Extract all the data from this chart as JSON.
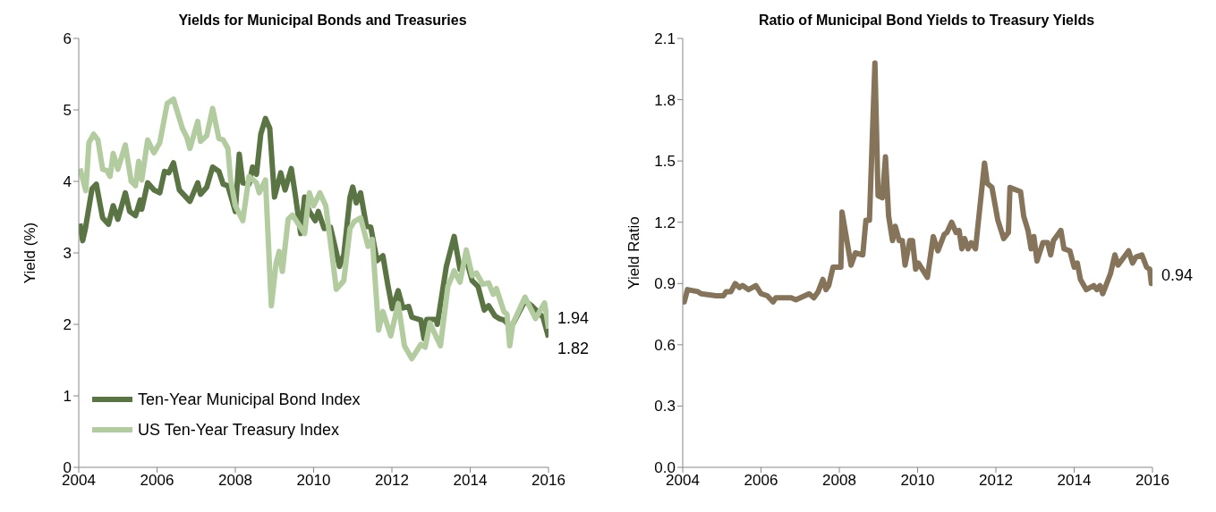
{
  "chart_data": [
    {
      "type": "line",
      "title": "Yields for Municipal Bonds and Treasuries",
      "ylabel": "Yield (%)",
      "xlim": [
        2004,
        2016
      ],
      "xticks": [
        2004,
        2006,
        2008,
        2010,
        2012,
        2014,
        2016
      ],
      "ylim": [
        0,
        6
      ],
      "yticks": [
        0,
        1,
        2,
        3,
        4,
        5,
        6
      ],
      "legend": "bottom left",
      "marker": "none",
      "line_style": "solid",
      "series": [
        {
          "name": "Ten-Year Municipal Bond Index",
          "color": "#5a7444",
          "x": [
            2004.03,
            2004.1,
            2004.17,
            2004.34,
            2004.45,
            2004.61,
            2004.76,
            2004.88,
            2005.0,
            2005.19,
            2005.3,
            2005.45,
            2005.57,
            2005.61,
            2005.76,
            2005.92,
            2006.07,
            2006.19,
            2006.3,
            2006.42,
            2006.57,
            2006.84,
            2007.04,
            2007.11,
            2007.27,
            2007.42,
            2007.58,
            2007.69,
            2007.81,
            2008.0,
            2008.1,
            2008.19,
            2008.35,
            2008.44,
            2008.54,
            2008.65,
            2008.77,
            2008.88,
            2009.0,
            2009.16,
            2009.27,
            2009.43,
            2009.53,
            2009.67,
            2009.77,
            2009.89,
            2010.04,
            2010.12,
            2010.27,
            2010.43,
            2010.58,
            2010.66,
            2010.77,
            2010.93,
            2011.0,
            2011.09,
            2011.2,
            2011.35,
            2011.46,
            2011.62,
            2011.77,
            2011.89,
            2012.01,
            2012.16,
            2012.28,
            2012.43,
            2012.51,
            2012.74,
            2012.82,
            2012.89,
            2013.13,
            2013.16,
            2013.39,
            2013.59,
            2013.74,
            2013.9,
            2014.05,
            2014.2,
            2014.36,
            2014.47,
            2014.63,
            2014.74,
            2014.86,
            2015.05,
            2015.4,
            2015.59,
            2015.7,
            2015.86,
            2016.0
          ],
          "values": [
            3.41,
            3.17,
            3.34,
            3.9,
            3.96,
            3.49,
            3.4,
            3.66,
            3.47,
            3.84,
            3.58,
            3.52,
            3.74,
            3.61,
            3.98,
            3.88,
            3.84,
            4.14,
            4.12,
            4.26,
            3.88,
            3.72,
            3.98,
            3.82,
            3.92,
            4.2,
            4.14,
            3.96,
            3.94,
            3.58,
            4.38,
            3.98,
            3.96,
            4.2,
            4.1,
            4.66,
            4.88,
            4.74,
            3.78,
            4.12,
            3.88,
            4.18,
            3.82,
            3.27,
            3.78,
            3.58,
            3.45,
            3.58,
            3.34,
            3.36,
            3.01,
            2.81,
            2.97,
            3.78,
            3.92,
            3.7,
            3.84,
            3.37,
            3.36,
            2.89,
            2.96,
            2.57,
            2.22,
            2.47,
            2.23,
            2.25,
            2.1,
            2.06,
            1.8,
            2.07,
            2.07,
            2.0,
            2.81,
            3.23,
            2.77,
            2.91,
            2.61,
            2.53,
            2.2,
            2.26,
            2.12,
            2.08,
            2.06,
            1.96,
            2.33,
            2.25,
            2.19,
            2.1,
            1.82
          ],
          "value_labels": [
            null,
            null,
            null,
            null,
            null,
            null,
            null,
            null,
            null,
            null,
            null,
            null,
            null,
            null,
            null,
            null,
            null,
            null,
            null,
            null,
            null,
            null,
            null,
            null,
            null,
            null,
            null,
            null,
            null,
            null,
            null,
            null,
            null,
            null,
            null,
            null,
            null,
            null,
            null,
            null,
            null,
            null,
            null,
            null,
            null,
            null,
            null,
            null,
            null,
            null,
            null,
            null,
            null,
            null,
            null,
            null,
            null,
            null,
            null,
            null,
            null,
            null,
            null,
            null,
            null,
            null,
            null,
            null,
            null,
            null,
            null,
            null,
            null,
            null,
            null,
            null,
            null,
            null,
            null,
            null,
            null,
            null,
            null,
            null,
            null,
            null,
            null,
            null,
            "1.82"
          ]
        },
        {
          "name": "US Ten-Year Treasury Index",
          "color": "#b2cca0",
          "x": [
            2004.03,
            2004.18,
            2004.26,
            2004.38,
            2004.49,
            2004.61,
            2004.72,
            2004.8,
            2004.88,
            2005.0,
            2005.19,
            2005.34,
            2005.45,
            2005.53,
            2005.61,
            2005.76,
            2005.92,
            2006.07,
            2006.26,
            2006.42,
            2006.65,
            2006.76,
            2006.84,
            2007.04,
            2007.11,
            2007.27,
            2007.42,
            2007.58,
            2007.69,
            2007.81,
            2007.88,
            2008.0,
            2008.19,
            2008.35,
            2008.54,
            2008.61,
            2008.77,
            2008.92,
            2009.04,
            2009.12,
            2009.2,
            2009.35,
            2009.46,
            2009.65,
            2009.77,
            2009.89,
            2010.0,
            2010.16,
            2010.31,
            2010.47,
            2010.58,
            2010.77,
            2010.93,
            2011.04,
            2011.2,
            2011.39,
            2011.5,
            2011.66,
            2011.77,
            2011.97,
            2012.16,
            2012.32,
            2012.51,
            2012.74,
            2012.85,
            2012.97,
            2013.24,
            2013.43,
            2013.59,
            2013.74,
            2013.9,
            2014.05,
            2014.16,
            2014.32,
            2014.47,
            2014.59,
            2014.67,
            2014.86,
            2014.94,
            2015.01,
            2015.09,
            2015.4,
            2015.67,
            2015.9,
            2016.0
          ],
          "values": [
            4.18,
            3.87,
            4.54,
            4.66,
            4.58,
            4.17,
            4.15,
            4.07,
            4.39,
            4.17,
            4.51,
            4.0,
            3.94,
            4.28,
            4.02,
            4.58,
            4.4,
            4.54,
            5.09,
            5.15,
            4.74,
            4.62,
            4.46,
            4.84,
            4.56,
            4.64,
            5.02,
            4.6,
            4.58,
            4.46,
            4.02,
            3.66,
            3.45,
            4.07,
            3.98,
            3.84,
            4.02,
            2.26,
            2.85,
            3.02,
            2.74,
            3.47,
            3.53,
            3.37,
            3.27,
            3.84,
            3.66,
            3.84,
            3.66,
            2.98,
            2.49,
            2.61,
            3.34,
            3.44,
            3.49,
            3.09,
            3.19,
            1.92,
            2.18,
            1.84,
            2.29,
            1.7,
            1.52,
            1.72,
            1.68,
            2.02,
            1.7,
            2.53,
            2.75,
            2.59,
            3.04,
            2.68,
            2.72,
            2.56,
            2.58,
            2.42,
            2.5,
            2.18,
            2.14,
            1.7,
            2.01,
            2.38,
            2.08,
            2.3,
            1.94
          ],
          "value_labels": [
            null,
            null,
            null,
            null,
            null,
            null,
            null,
            null,
            null,
            null,
            null,
            null,
            null,
            null,
            null,
            null,
            null,
            null,
            null,
            null,
            null,
            null,
            null,
            null,
            null,
            null,
            null,
            null,
            null,
            null,
            null,
            null,
            null,
            null,
            null,
            null,
            null,
            null,
            null,
            null,
            null,
            null,
            null,
            null,
            null,
            null,
            null,
            null,
            null,
            null,
            null,
            null,
            null,
            null,
            null,
            null,
            null,
            null,
            null,
            null,
            null,
            null,
            null,
            null,
            null,
            null,
            null,
            null,
            null,
            null,
            null,
            null,
            null,
            null,
            null,
            null,
            null,
            null,
            null,
            null,
            null,
            null,
            null,
            null,
            "1.94"
          ]
        }
      ]
    },
    {
      "type": "line",
      "title": "Ratio of Municipal Bond Yields to Treasury Yields",
      "ylabel": "Yield Ratio",
      "xlim": [
        2004,
        2016
      ],
      "xticks": [
        2004,
        2006,
        2008,
        2010,
        2012,
        2014,
        2016
      ],
      "ylim": [
        0,
        2.1
      ],
      "yticks": [
        {
          "value": 0,
          "label": "0.0"
        },
        0.3,
        0.6,
        0.9,
        1.2,
        1.5,
        1.8,
        2.1
      ],
      "marker": "none",
      "line_style": "solid",
      "series": [
        {
          "color": "#85745a",
          "x": [
            2004.0,
            2004.04,
            2004.12,
            2004.39,
            2004.47,
            2004.85,
            2005.04,
            2005.11,
            2005.23,
            2005.34,
            2005.45,
            2005.53,
            2005.68,
            2005.87,
            2006.0,
            2006.16,
            2006.31,
            2006.38,
            2006.77,
            2006.89,
            2007.23,
            2007.35,
            2007.46,
            2007.58,
            2007.66,
            2007.73,
            2007.84,
            2008.04,
            2008.07,
            2008.3,
            2008.41,
            2008.6,
            2008.68,
            2008.77,
            2008.91,
            2008.99,
            2009.1,
            2009.18,
            2009.26,
            2009.36,
            2009.43,
            2009.53,
            2009.61,
            2009.68,
            2009.8,
            2009.87,
            2009.95,
            2010.02,
            2010.25,
            2010.4,
            2010.52,
            2010.68,
            2010.75,
            2010.87,
            2010.98,
            2011.06,
            2011.13,
            2011.2,
            2011.29,
            2011.37,
            2011.48,
            2011.71,
            2011.78,
            2011.9,
            2012.05,
            2012.2,
            2012.32,
            2012.36,
            2012.63,
            2012.71,
            2012.82,
            2012.9,
            2012.97,
            2013.05,
            2013.2,
            2013.32,
            2013.4,
            2013.47,
            2013.66,
            2013.74,
            2013.89,
            2014.0,
            2014.08,
            2014.16,
            2014.31,
            2014.5,
            2014.58,
            2014.66,
            2014.73,
            2014.93,
            2015.04,
            2015.12,
            2015.39,
            2015.49,
            2015.58,
            2015.73,
            2015.85,
            2015.93,
            2015.97,
            2016.0
          ],
          "values": [
            0.82,
            0.81,
            0.87,
            0.86,
            0.85,
            0.84,
            0.84,
            0.86,
            0.86,
            0.9,
            0.88,
            0.89,
            0.87,
            0.89,
            0.85,
            0.84,
            0.81,
            0.83,
            0.83,
            0.82,
            0.85,
            0.83,
            0.86,
            0.92,
            0.87,
            0.89,
            0.98,
            0.98,
            1.25,
            0.99,
            1.05,
            1.04,
            1.21,
            1.21,
            1.98,
            1.33,
            1.32,
            1.52,
            1.23,
            1.11,
            1.18,
            1.11,
            1.11,
            0.99,
            1.11,
            1.11,
            0.97,
            1.0,
            0.93,
            1.13,
            1.06,
            1.14,
            1.15,
            1.2,
            1.15,
            1.16,
            1.07,
            1.12,
            1.07,
            1.1,
            1.07,
            1.49,
            1.39,
            1.37,
            1.21,
            1.12,
            1.15,
            1.37,
            1.35,
            1.23,
            1.16,
            1.07,
            1.13,
            1.01,
            1.1,
            1.1,
            1.04,
            1.11,
            1.16,
            1.07,
            1.06,
            0.98,
            1.0,
            0.92,
            0.87,
            0.89,
            0.87,
            0.89,
            0.85,
            0.95,
            1.04,
            0.99,
            1.06,
            1.0,
            1.03,
            1.04,
            0.98,
            0.97,
            0.9,
            0.94
          ],
          "value_labels": [
            null,
            null,
            null,
            null,
            null,
            null,
            null,
            null,
            null,
            null,
            null,
            null,
            null,
            null,
            null,
            null,
            null,
            null,
            null,
            null,
            null,
            null,
            null,
            null,
            null,
            null,
            null,
            null,
            null,
            null,
            null,
            null,
            null,
            null,
            null,
            null,
            null,
            null,
            null,
            null,
            null,
            null,
            null,
            null,
            null,
            null,
            null,
            null,
            null,
            null,
            null,
            null,
            null,
            null,
            null,
            null,
            null,
            null,
            null,
            null,
            null,
            null,
            null,
            null,
            null,
            null,
            null,
            null,
            null,
            null,
            null,
            null,
            null,
            null,
            null,
            null,
            null,
            null,
            null,
            null,
            null,
            null,
            null,
            null,
            null,
            null,
            null,
            null,
            null,
            null,
            null,
            null,
            null,
            null,
            null,
            null,
            null,
            null,
            null,
            "0.94"
          ]
        }
      ]
    }
  ]
}
